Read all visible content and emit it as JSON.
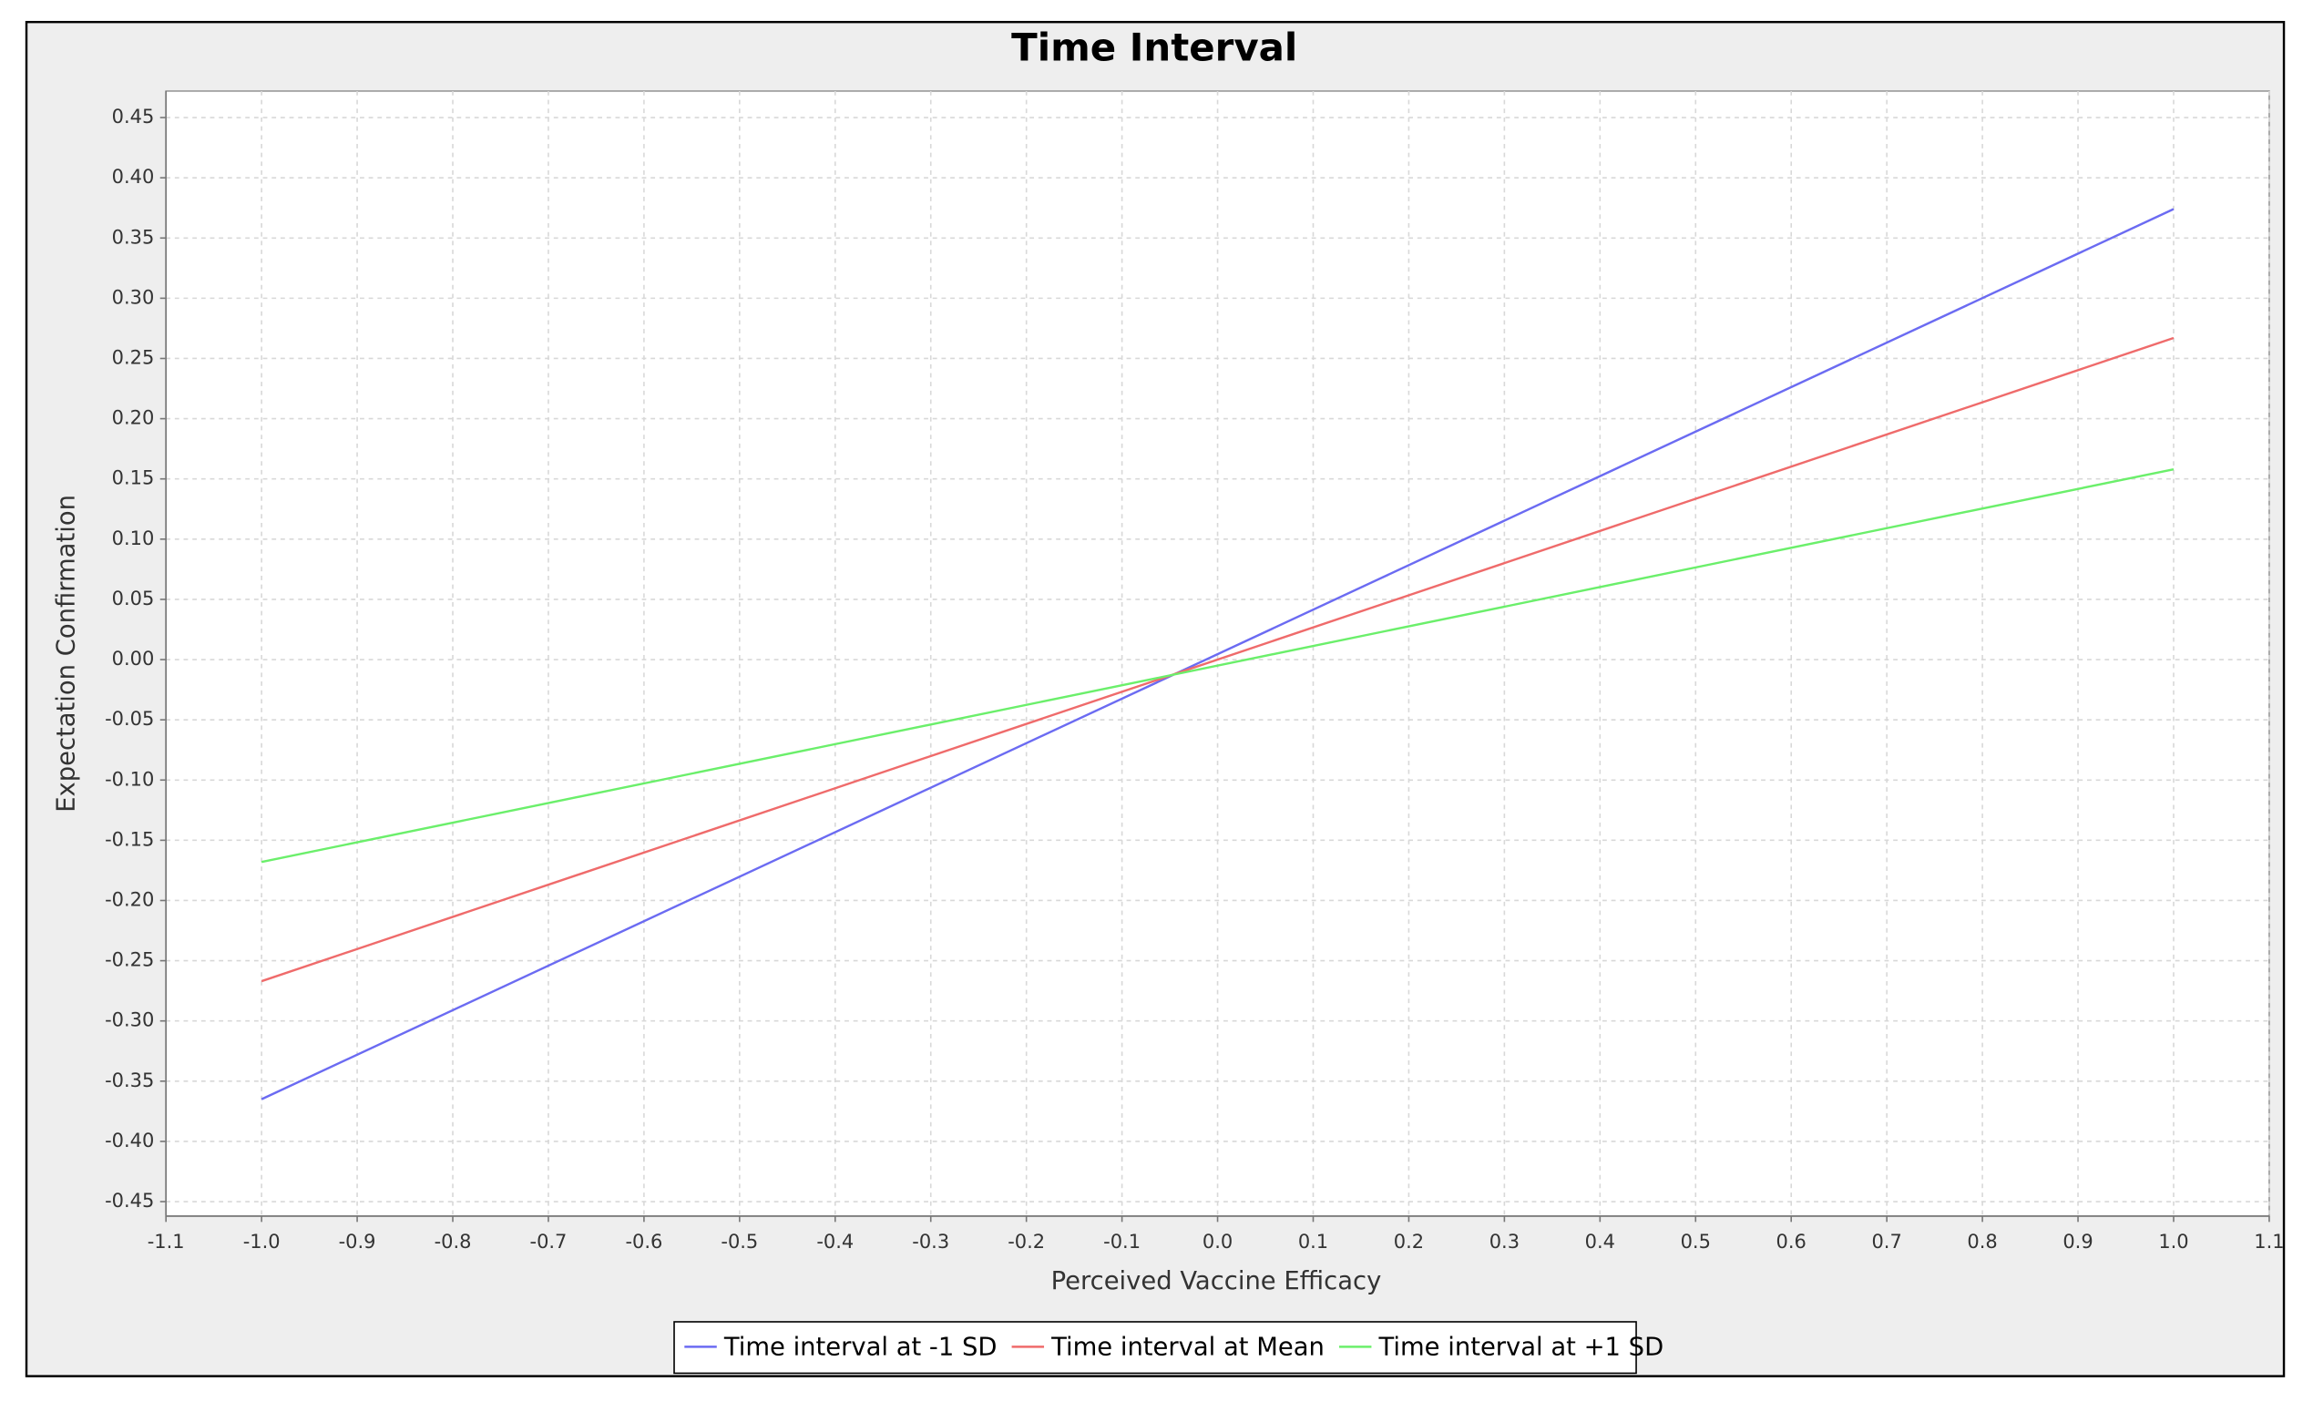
{
  "chart_data": {
    "type": "line",
    "title": "Time Interval",
    "x_label": "Perceived Vaccine Efficacy",
    "y_label": "Expectation Confirmation",
    "x": [
      -1,
      1
    ],
    "series": [
      {
        "name": "Time interval at -1 SD",
        "color": "#6b6bf2",
        "values": [
          -0.365,
          0.374
        ]
      },
      {
        "name": "Time interval at Mean",
        "color": "#ef6b6b",
        "values": [
          -0.267,
          0.267
        ]
      },
      {
        "name": "Time interval at +1 SD",
        "color": "#6bef6b",
        "values": [
          -0.168,
          0.158
        ]
      }
    ],
    "xlim": [
      -1.1,
      1.1
    ],
    "xticks": [
      -1.1,
      {
        "value": -1,
        "label": "-1.0"
      },
      -0.9,
      -0.8,
      -0.7,
      -0.6,
      -0.5,
      -0.4,
      -0.3,
      -0.2,
      -0.1,
      {
        "value": 0,
        "label": "0.0"
      },
      0.1,
      0.2,
      0.3,
      0.4,
      0.5,
      0.6,
      0.7,
      0.8,
      0.9,
      {
        "value": 1,
        "label": "1.0"
      },
      1.1
    ],
    "ylim": [
      -0.462,
      0.472
    ],
    "yticks": [
      0.45,
      {
        "value": 0.4,
        "label": "0.40"
      },
      0.35,
      {
        "value": 0.3,
        "label": "0.30"
      },
      0.25,
      {
        "value": 0.2,
        "label": "0.20"
      },
      0.15,
      {
        "value": 0.1,
        "label": "0.10"
      },
      0.05,
      {
        "value": 0,
        "label": "0.00"
      },
      -0.05,
      {
        "value": -0.1,
        "label": "-0.10"
      },
      -0.15,
      {
        "value": -0.2,
        "label": "-0.20"
      },
      -0.25,
      {
        "value": -0.3,
        "label": "-0.30"
      },
      -0.35,
      {
        "value": -0.4,
        "label": "-0.40"
      },
      -0.45
    ],
    "grid": true
  }
}
